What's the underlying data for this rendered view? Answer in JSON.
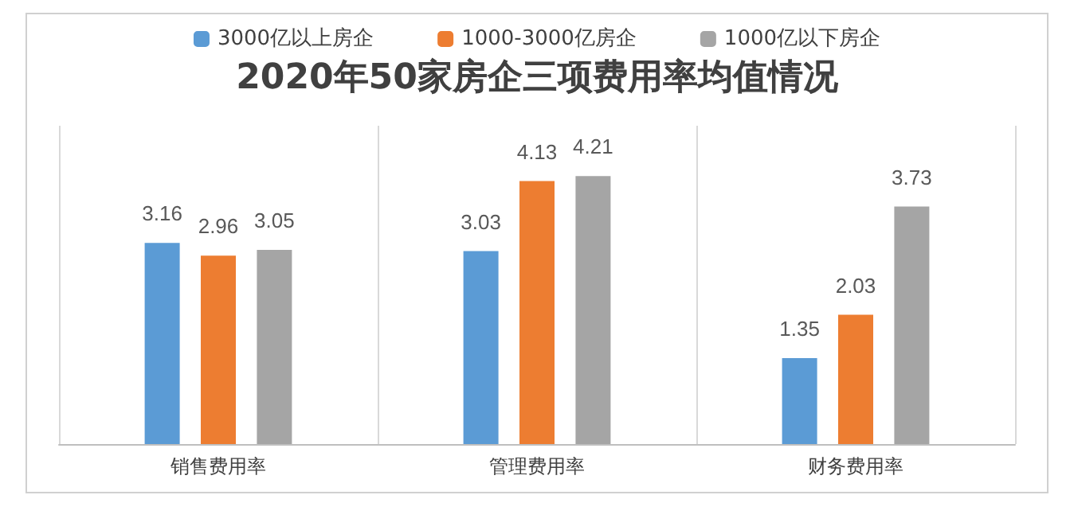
{
  "chart_data": {
    "type": "bar",
    "title": "2020年50家房企三项费用率均值情况",
    "categories": [
      "销售费用率",
      "管理费用率",
      "财务费用率"
    ],
    "series": [
      {
        "name": "3000亿以上房企",
        "color": "#5b9bd5",
        "values": [
          3.16,
          3.03,
          1.35
        ]
      },
      {
        "name": "1000-3000亿房企",
        "color": "#ed7d31",
        "values": [
          2.96,
          4.13,
          2.03
        ]
      },
      {
        "name": "1000亿以下房企",
        "color": "#a5a5a5",
        "values": [
          3.05,
          4.21,
          3.73
        ]
      }
    ],
    "data_labels": true,
    "legend": "top",
    "grid": "x"
  }
}
